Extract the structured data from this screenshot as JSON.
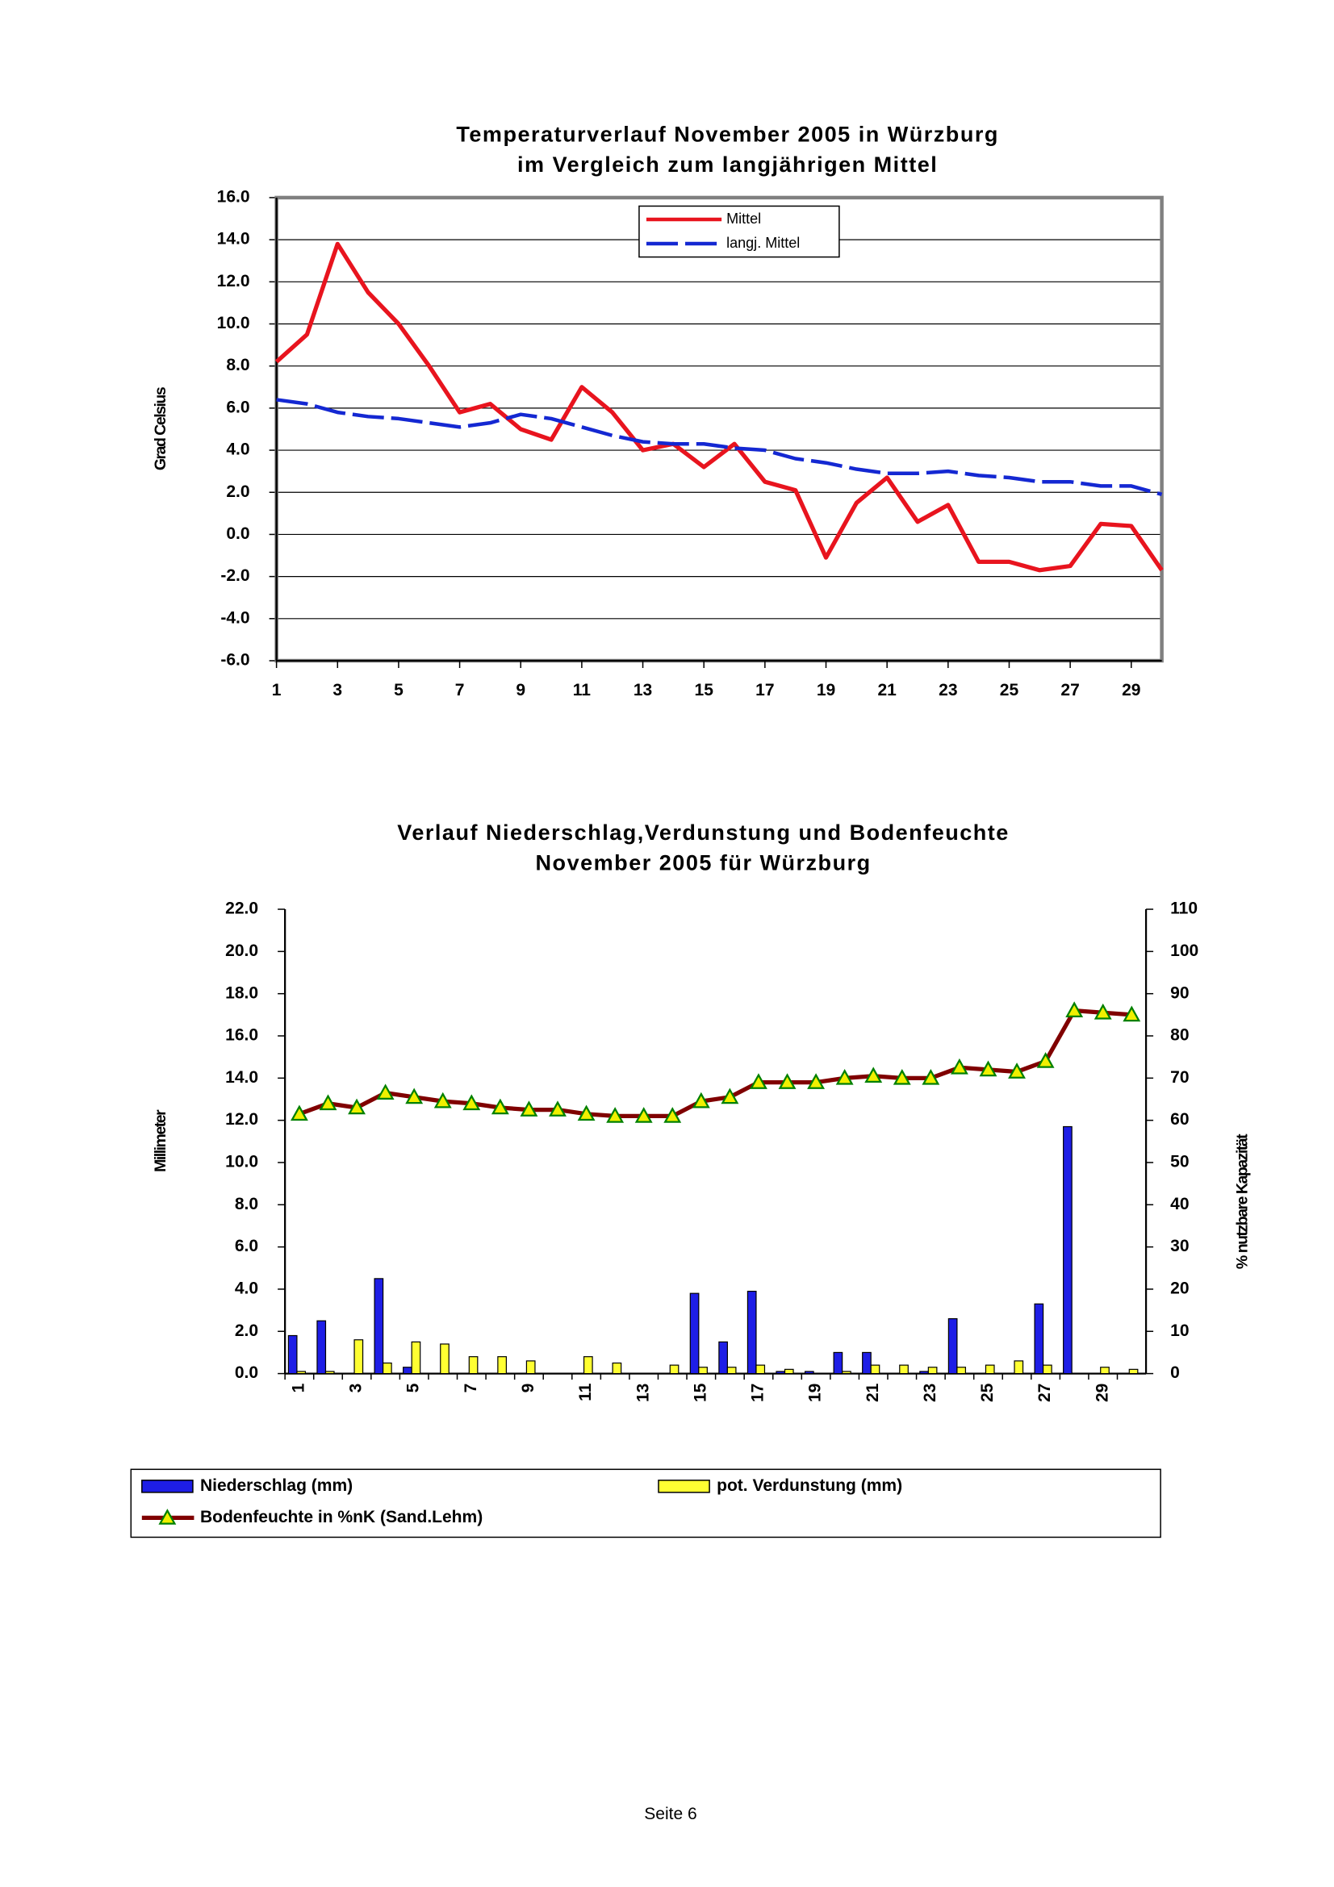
{
  "chart_data": [
    {
      "type": "line",
      "title": "Temperaturverlauf November 2005 in Würzburg",
      "subtitle": "im Vergleich zum langjährigen Mittel",
      "y_label": "Grad Celsius",
      "x": [
        1,
        2,
        3,
        4,
        5,
        6,
        7,
        8,
        9,
        10,
        11,
        12,
        13,
        14,
        15,
        16,
        17,
        18,
        19,
        20,
        21,
        22,
        23,
        24,
        25,
        26,
        27,
        28,
        29,
        30
      ],
      "xlim": [
        1,
        30
      ],
      "xticks": [
        1,
        3,
        5,
        7,
        9,
        11,
        13,
        15,
        17,
        19,
        21,
        23,
        25,
        27,
        29
      ],
      "ylim": [
        -6,
        16
      ],
      "yticks": [
        {
          "value": -6,
          "label": "-6.0"
        },
        {
          "value": -4,
          "label": "-4.0"
        },
        {
          "value": -2,
          "label": "-2.0"
        },
        {
          "value": 0,
          "label": "0.0"
        },
        {
          "value": 2,
          "label": "2.0"
        },
        {
          "value": 4,
          "label": "4.0"
        },
        {
          "value": 6,
          "label": "6.0"
        },
        {
          "value": 8,
          "label": "8.0"
        },
        {
          "value": 10,
          "label": "10.0"
        },
        {
          "value": 12,
          "label": "12.0"
        },
        {
          "value": 14,
          "label": "14.0"
        },
        {
          "value": 16,
          "label": "16.0"
        }
      ],
      "grid": true,
      "legend": "top-right",
      "series": [
        {
          "name": "Mittel",
          "color": "#e8141e",
          "values": [
            8.2,
            9.5,
            13.8,
            11.5,
            10.0,
            8.0,
            5.8,
            6.2,
            5.0,
            4.5,
            7.0,
            5.8,
            4.0,
            4.3,
            3.2,
            4.3,
            2.5,
            2.1,
            -1.1,
            1.5,
            2.7,
            0.6,
            1.4,
            -1.3,
            -1.3,
            -1.7,
            -1.5,
            0.5,
            0.4,
            -1.7
          ]
        },
        {
          "name": "langj. Mittel",
          "color": "#1428d2",
          "dashed": true,
          "values": [
            6.4,
            6.2,
            5.8,
            5.6,
            5.5,
            5.3,
            5.1,
            5.3,
            5.7,
            5.5,
            5.1,
            4.7,
            4.4,
            4.3,
            4.3,
            4.1,
            4.0,
            3.6,
            3.4,
            3.1,
            2.9,
            2.9,
            3.0,
            2.8,
            2.7,
            2.5,
            2.5,
            2.3,
            2.3,
            1.9
          ]
        }
      ]
    },
    {
      "type": "bar",
      "title": "Verlauf Niederschlag,Verdunstung und Bodenfeuchte",
      "subtitle": "November 2005 für Würzburg",
      "y_label": "Millimeter",
      "y2_label": "% nutzbare Kapazität",
      "categories": [
        "1",
        null,
        "3",
        null,
        "5",
        null,
        "7",
        null,
        "9",
        null,
        "11",
        null,
        "13",
        null,
        "15",
        null,
        "17",
        null,
        "19",
        null,
        "21",
        null,
        "23",
        null,
        "25",
        null,
        "27",
        null,
        "29",
        null
      ],
      "ylim": [
        0,
        22
      ],
      "yticks": [
        {
          "value": 0,
          "label": "0.0"
        },
        {
          "value": 2,
          "label": "2.0"
        },
        {
          "value": 4,
          "label": "4.0"
        },
        {
          "value": 6,
          "label": "6.0"
        },
        {
          "value": 8,
          "label": "8.0"
        },
        {
          "value": 10,
          "label": "10.0"
        },
        {
          "value": 12,
          "label": "12.0"
        },
        {
          "value": 14,
          "label": "14.0"
        },
        {
          "value": 16,
          "label": "16.0"
        },
        {
          "value": 18,
          "label": "18.0"
        },
        {
          "value": 20,
          "label": "20.0"
        },
        {
          "value": 22,
          "label": "22.0"
        }
      ],
      "y2lim": [
        0,
        110
      ],
      "y2ticks": [
        0,
        10,
        20,
        30,
        40,
        50,
        60,
        70,
        80,
        90,
        100,
        110
      ],
      "grid": false,
      "legend": "bottom",
      "series": [
        {
          "name": "Niederschlag (mm)",
          "color": "#1e1ee6",
          "values": [
            1.8,
            2.5,
            0,
            4.5,
            0.3,
            0,
            0,
            0,
            0,
            0,
            0,
            0,
            0,
            0,
            3.8,
            1.5,
            3.9,
            0.1,
            0.1,
            1.0,
            1.0,
            0,
            0.1,
            2.6,
            0,
            0,
            3.3,
            11.7,
            0,
            0
          ]
        },
        {
          "name": "pot. Verdunstung (mm)",
          "color": "#ffff32",
          "values": [
            0.1,
            0.1,
            1.6,
            0.5,
            1.5,
            1.4,
            0.8,
            0.8,
            0.6,
            0,
            0.8,
            0.5,
            0,
            0.4,
            0.3,
            0.3,
            0.4,
            0.2,
            0,
            0.1,
            0.4,
            0.4,
            0.3,
            0.3,
            0.4,
            0.6,
            0.4,
            0,
            0.3,
            0.2
          ]
        },
        {
          "name": "Bodenfeuchte in %nK (Sand.Lehm)",
          "type": "line",
          "axis": "y2",
          "color": "#800000",
          "marker_color": "#f0f000",
          "values": [
            61.5,
            64,
            63,
            66.5,
            65.5,
            64.5,
            64,
            63,
            62.5,
            62.5,
            61.5,
            61,
            61,
            61,
            64.5,
            65.5,
            69,
            69,
            69,
            70,
            70.5,
            70,
            70,
            72.5,
            72,
            71.5,
            74,
            86,
            85.5,
            85
          ]
        }
      ]
    }
  ],
  "footer": "Seite 6"
}
